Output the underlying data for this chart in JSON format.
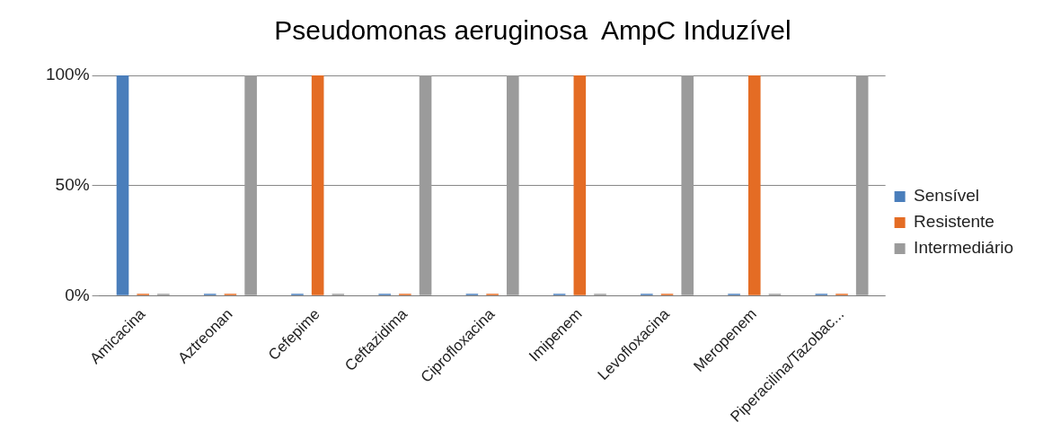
{
  "chart_data": {
    "type": "bar",
    "title": "Pseudomonas aeruginosa  AmpC Induzível",
    "categories": [
      "Amicacina",
      "Aztreonan",
      "Cefepime",
      "Ceftazidima",
      "Ciprofloxacina",
      "Imipenem",
      "Levofloxacina",
      "Meropenem",
      "Piperacilina/Tazobac..."
    ],
    "series": [
      {
        "name": "Sensível",
        "color": "#4a7ebb",
        "values": [
          100,
          0,
          0,
          0,
          0,
          0,
          0,
          0,
          0
        ]
      },
      {
        "name": "Resistente",
        "color": "#e46c24",
        "values": [
          0,
          0,
          100,
          0,
          0,
          100,
          0,
          100,
          0
        ]
      },
      {
        "name": "Intermediário",
        "color": "#9b9b9b",
        "values": [
          0,
          100,
          0,
          100,
          100,
          0,
          100,
          0,
          100
        ]
      }
    ],
    "ylim": [
      0,
      100
    ],
    "yticks": [
      {
        "value": 0,
        "label": "0%"
      },
      {
        "value": 50,
        "label": "50%"
      },
      {
        "value": 100,
        "label": "100%"
      }
    ],
    "grid": "y",
    "legend": "right"
  }
}
